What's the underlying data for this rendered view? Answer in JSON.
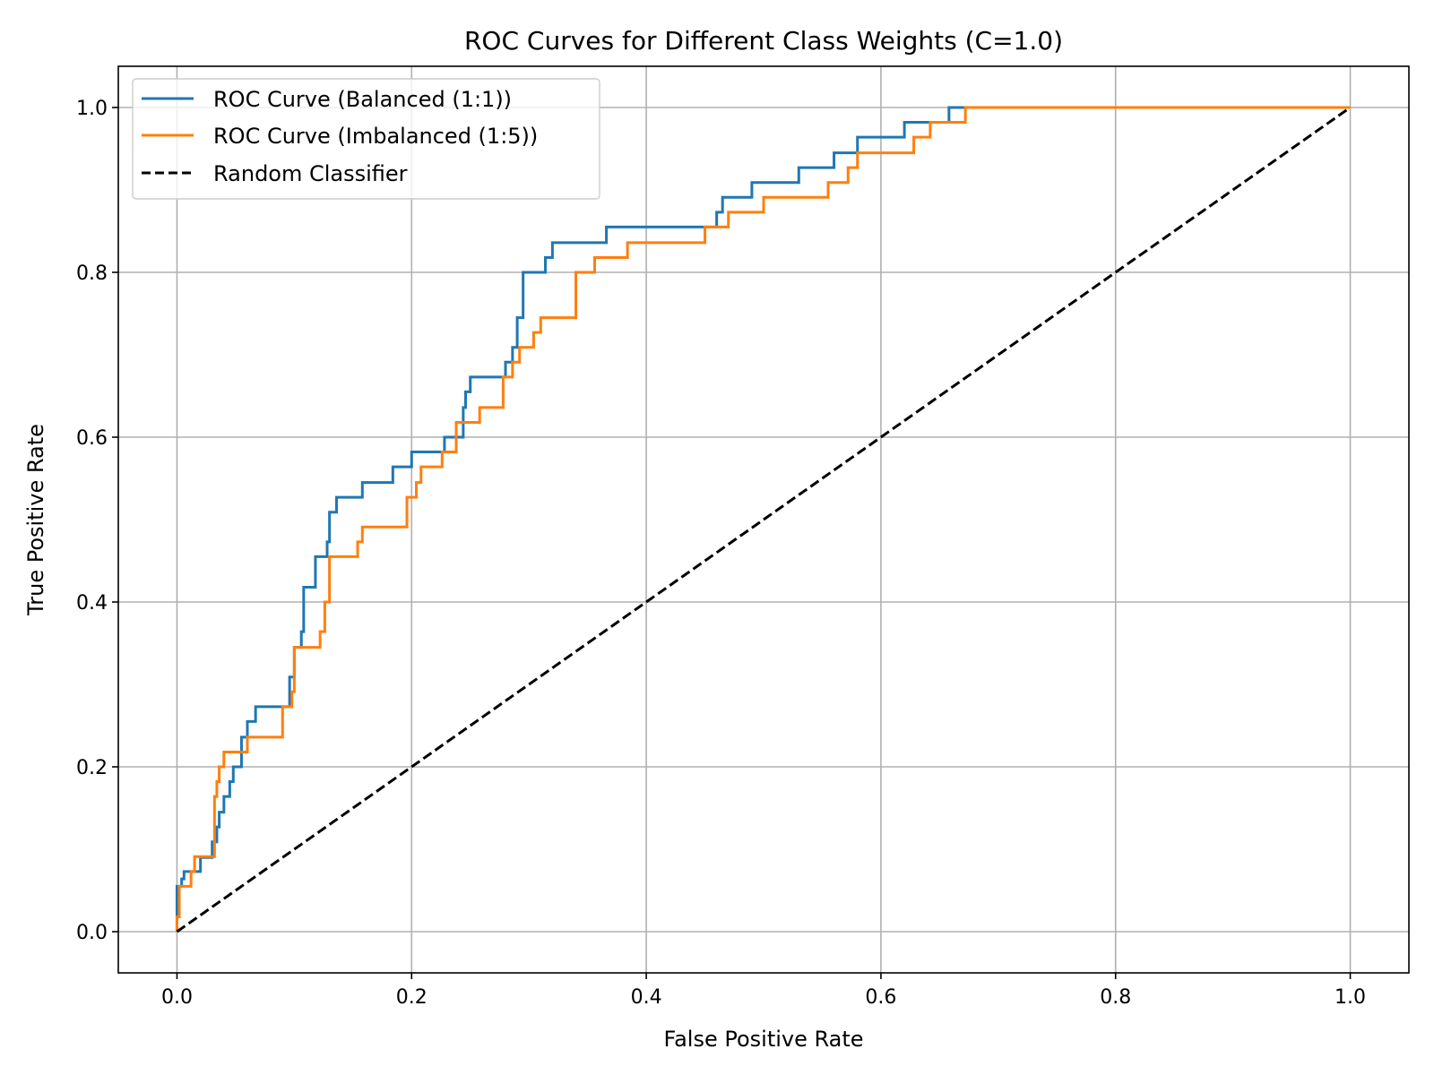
{
  "chart_data": {
    "type": "line",
    "title": "ROC Curves for Different Class Weights (C=1.0)",
    "xlabel": "False Positive Rate",
    "ylabel": "True Positive Rate",
    "xlim": [
      -0.05,
      1.05
    ],
    "ylim": [
      -0.05,
      1.05
    ],
    "xticks": [
      "0.0",
      "0.2",
      "0.4",
      "0.6",
      "0.8",
      "1.0"
    ],
    "yticks": [
      "0.0",
      "0.2",
      "0.4",
      "0.6",
      "0.8",
      "1.0"
    ],
    "grid": true,
    "legend_position": "upper left",
    "series": [
      {
        "name": "ROC Curve (Balanced (1:1))",
        "color": "#1f77b4",
        "style": "solid",
        "step": true,
        "x": [
          0.0,
          0.0,
          0.004,
          0.004,
          0.006,
          0.006,
          0.02,
          0.02,
          0.03,
          0.03,
          0.034,
          0.034,
          0.036,
          0.036,
          0.04,
          0.04,
          0.045,
          0.045,
          0.048,
          0.048,
          0.055,
          0.055,
          0.06,
          0.06,
          0.067,
          0.067,
          0.096,
          0.096,
          0.1,
          0.1,
          0.106,
          0.106,
          0.108,
          0.108,
          0.118,
          0.118,
          0.128,
          0.128,
          0.13,
          0.13,
          0.136,
          0.136,
          0.158,
          0.158,
          0.184,
          0.184,
          0.2,
          0.2,
          0.228,
          0.228,
          0.244,
          0.244,
          0.246,
          0.246,
          0.25,
          0.25,
          0.28,
          0.28,
          0.286,
          0.286,
          0.29,
          0.29,
          0.295,
          0.295,
          0.314,
          0.314,
          0.32,
          0.32,
          0.366,
          0.366,
          0.46,
          0.46,
          0.465,
          0.465,
          0.49,
          0.49,
          0.53,
          0.53,
          0.56,
          0.56,
          0.58,
          0.58,
          0.62,
          0.62,
          0.658,
          0.658,
          0.88,
          0.88,
          1.0
        ],
        "y": [
          0.0,
          0.055,
          0.055,
          0.064,
          0.064,
          0.073,
          0.073,
          0.09,
          0.09,
          0.109,
          0.109,
          0.127,
          0.127,
          0.145,
          0.145,
          0.164,
          0.164,
          0.182,
          0.182,
          0.2,
          0.2,
          0.236,
          0.236,
          0.255,
          0.255,
          0.273,
          0.273,
          0.309,
          0.309,
          0.345,
          0.345,
          0.364,
          0.364,
          0.418,
          0.418,
          0.455,
          0.455,
          0.473,
          0.473,
          0.509,
          0.509,
          0.527,
          0.527,
          0.545,
          0.545,
          0.564,
          0.564,
          0.582,
          0.582,
          0.6,
          0.6,
          0.636,
          0.636,
          0.655,
          0.655,
          0.673,
          0.673,
          0.691,
          0.691,
          0.709,
          0.709,
          0.745,
          0.745,
          0.8,
          0.8,
          0.818,
          0.818,
          0.836,
          0.836,
          0.855,
          0.855,
          0.873,
          0.873,
          0.891,
          0.891,
          0.909,
          0.909,
          0.927,
          0.927,
          0.945,
          0.945,
          0.964,
          0.964,
          0.982,
          0.982,
          1.0,
          1.0,
          1.0,
          1.0
        ]
      },
      {
        "name": "ROC Curve (Imbalanced (1:5))",
        "color": "#ff7f0e",
        "style": "solid",
        "step": true,
        "x": [
          0.0,
          0.0,
          0.002,
          0.002,
          0.012,
          0.012,
          0.015,
          0.015,
          0.032,
          0.032,
          0.034,
          0.034,
          0.036,
          0.036,
          0.04,
          0.04,
          0.042,
          0.042,
          0.06,
          0.06,
          0.09,
          0.09,
          0.098,
          0.098,
          0.1,
          0.1,
          0.106,
          0.106,
          0.122,
          0.122,
          0.126,
          0.126,
          0.13,
          0.13,
          0.154,
          0.154,
          0.158,
          0.158,
          0.196,
          0.196,
          0.204,
          0.204,
          0.208,
          0.208,
          0.226,
          0.226,
          0.238,
          0.238,
          0.258,
          0.258,
          0.278,
          0.278,
          0.286,
          0.286,
          0.292,
          0.292,
          0.304,
          0.304,
          0.31,
          0.31,
          0.34,
          0.34,
          0.356,
          0.356,
          0.384,
          0.384,
          0.45,
          0.45,
          0.47,
          0.47,
          0.5,
          0.5,
          0.555,
          0.555,
          0.572,
          0.572,
          0.58,
          0.58,
          0.628,
          0.628,
          0.642,
          0.642,
          0.672,
          0.672,
          0.878,
          0.878,
          1.0
        ],
        "y": [
          0.0,
          0.018,
          0.018,
          0.055,
          0.055,
          0.073,
          0.073,
          0.091,
          0.091,
          0.164,
          0.164,
          0.182,
          0.182,
          0.2,
          0.2,
          0.218,
          0.218,
          0.218,
          0.218,
          0.236,
          0.236,
          0.273,
          0.273,
          0.291,
          0.291,
          0.345,
          0.345,
          0.345,
          0.345,
          0.364,
          0.364,
          0.4,
          0.4,
          0.455,
          0.455,
          0.473,
          0.473,
          0.491,
          0.491,
          0.527,
          0.527,
          0.545,
          0.545,
          0.564,
          0.564,
          0.582,
          0.582,
          0.618,
          0.618,
          0.636,
          0.636,
          0.673,
          0.673,
          0.691,
          0.691,
          0.709,
          0.709,
          0.727,
          0.727,
          0.745,
          0.745,
          0.8,
          0.8,
          0.818,
          0.818,
          0.836,
          0.836,
          0.855,
          0.855,
          0.873,
          0.873,
          0.891,
          0.891,
          0.909,
          0.909,
          0.927,
          0.927,
          0.945,
          0.945,
          0.964,
          0.964,
          0.982,
          0.982,
          1.0,
          1.0,
          1.0,
          1.0
        ]
      },
      {
        "name": "Random Classifier",
        "color": "#000000",
        "style": "dashed",
        "step": false,
        "x": [
          0.0,
          1.0
        ],
        "y": [
          0.0,
          1.0
        ]
      }
    ]
  }
}
